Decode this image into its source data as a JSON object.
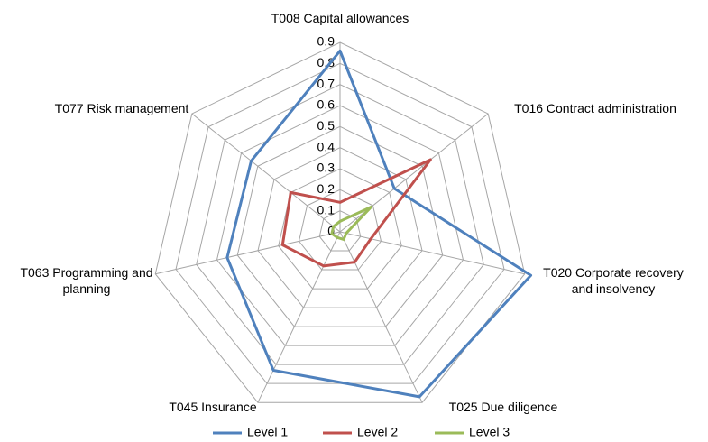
{
  "chart_data": {
    "type": "radar",
    "categories": [
      "T008 Capital allowances",
      "T016 Contract administration",
      "T020 Corporate recovery and insolvency",
      "T025 Due diligence",
      "T045 Insurance",
      "T063 Programming and planning",
      "T077 Risk management"
    ],
    "series": [
      {
        "name": "Level 1",
        "color": "#4f81bd",
        "values": [
          0.86,
          0.33,
          0.93,
          0.87,
          0.73,
          0.55,
          0.54
        ]
      },
      {
        "name": "Level 2",
        "color": "#c0504d",
        "values": [
          0.14,
          0.55,
          0.15,
          0.16,
          0.18,
          0.28,
          0.3
        ]
      },
      {
        "name": "Level 3",
        "color": "#9bbb59",
        "values": [
          0.05,
          0.19,
          0.03,
          0.04,
          0.03,
          0.04,
          0.04
        ]
      }
    ],
    "ylim": [
      0,
      0.9
    ],
    "yticks": [
      0,
      0.1,
      0.2,
      0.3,
      0.4,
      0.5,
      0.6,
      0.7,
      0.8,
      0.9
    ],
    "grid": true,
    "legend": "bottom"
  }
}
